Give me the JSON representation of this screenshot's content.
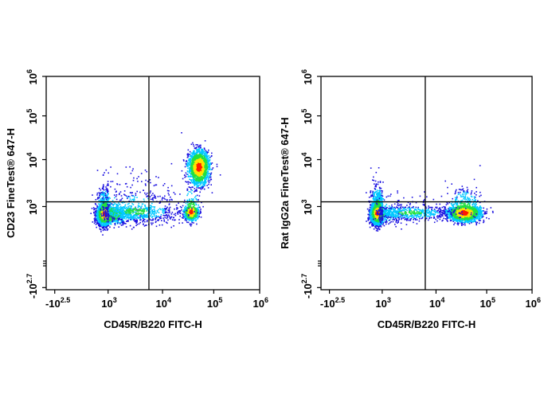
{
  "colors": {
    "density_low": "#1a10e0",
    "density_mid_low": "#00c8ff",
    "density_mid": "#22e040",
    "density_mid_high": "#ffe400",
    "density_high": "#ff1a00",
    "gate_line": "#000000",
    "frame": "#000000"
  },
  "chart_data": [
    {
      "type": "scatter",
      "style": "pseudocolor-density",
      "xlabel": "CD45R/B220 FITC-H",
      "ylabel": "CD23  FineTest® 647-H",
      "x_scale": "biexponential",
      "y_scale": "biexponential",
      "xlim_exp": [
        -2.5,
        6
      ],
      "ylim_exp": [
        -2.7,
        6
      ],
      "x_ticks": [
        {
          "base": "-10",
          "exp": "2.5",
          "value_exp": -2.5
        },
        {
          "base": "10",
          "exp": "3",
          "value_exp": 3
        },
        {
          "base": "10",
          "exp": "4",
          "value_exp": 4
        },
        {
          "base": "10",
          "exp": "5",
          "value_exp": 5
        },
        {
          "base": "10",
          "exp": "6",
          "value_exp": 6
        }
      ],
      "y_ticks": [
        {
          "base": "-10",
          "exp": "2.7",
          "value_exp": -2.7
        },
        {
          "base": "10",
          "exp": "3",
          "value_exp": 3
        },
        {
          "base": "10",
          "exp": "4",
          "value_exp": 4
        },
        {
          "base": "10",
          "exp": "5",
          "value_exp": 5
        },
        {
          "base": "10",
          "exp": "6",
          "value_exp": 6
        }
      ],
      "gate_x_exp": 3.75,
      "gate_y_exp": 3.1,
      "populations": [
        {
          "x_exp": 2.6,
          "y_exp": 2.5,
          "count": 3200,
          "sx": 0.38,
          "sy": 0.36
        },
        {
          "x_exp": 4.7,
          "y_exp": 3.85,
          "count": 1800,
          "sx": 0.1,
          "sy": 0.18
        },
        {
          "x_exp": 4.55,
          "y_exp": 2.65,
          "count": 700,
          "sx": 0.07,
          "sy": 0.3
        },
        {
          "x_exp": 3.5,
          "y_exp": 2.7,
          "count": 800,
          "sx": 0.45,
          "sy": 0.45
        }
      ]
    },
    {
      "type": "scatter",
      "style": "pseudocolor-density",
      "xlabel": "CD45R/B220 FITC-H",
      "ylabel": "Rat IgG2a  FineTest® 647-H",
      "x_scale": "biexponential",
      "y_scale": "biexponential",
      "xlim_exp": [
        -2.5,
        6
      ],
      "ylim_exp": [
        -2.7,
        6
      ],
      "x_ticks": [
        {
          "base": "-10",
          "exp": "2.5",
          "value_exp": -2.5
        },
        {
          "base": "10",
          "exp": "3",
          "value_exp": 3
        },
        {
          "base": "10",
          "exp": "4",
          "value_exp": 4
        },
        {
          "base": "10",
          "exp": "5",
          "value_exp": 5
        },
        {
          "base": "10",
          "exp": "6",
          "value_exp": 6
        }
      ],
      "y_ticks": [
        {
          "base": "-10",
          "exp": "2.7",
          "value_exp": -2.7
        },
        {
          "base": "10",
          "exp": "3",
          "value_exp": 3
        },
        {
          "base": "10",
          "exp": "4",
          "value_exp": 4
        },
        {
          "base": "10",
          "exp": "5",
          "value_exp": 5
        },
        {
          "base": "10",
          "exp": "6",
          "value_exp": 6
        }
      ],
      "gate_x_exp": 3.8,
      "gate_y_exp": 3.1,
      "populations": [
        {
          "x_exp": 2.45,
          "y_exp": 2.55,
          "count": 3200,
          "sx": 0.35,
          "sy": 0.36
        },
        {
          "x_exp": 4.55,
          "y_exp": 2.6,
          "count": 2200,
          "sx": 0.16,
          "sy": 0.3
        },
        {
          "x_exp": 3.5,
          "y_exp": 2.6,
          "count": 600,
          "sx": 0.45,
          "sy": 0.3
        }
      ]
    }
  ]
}
